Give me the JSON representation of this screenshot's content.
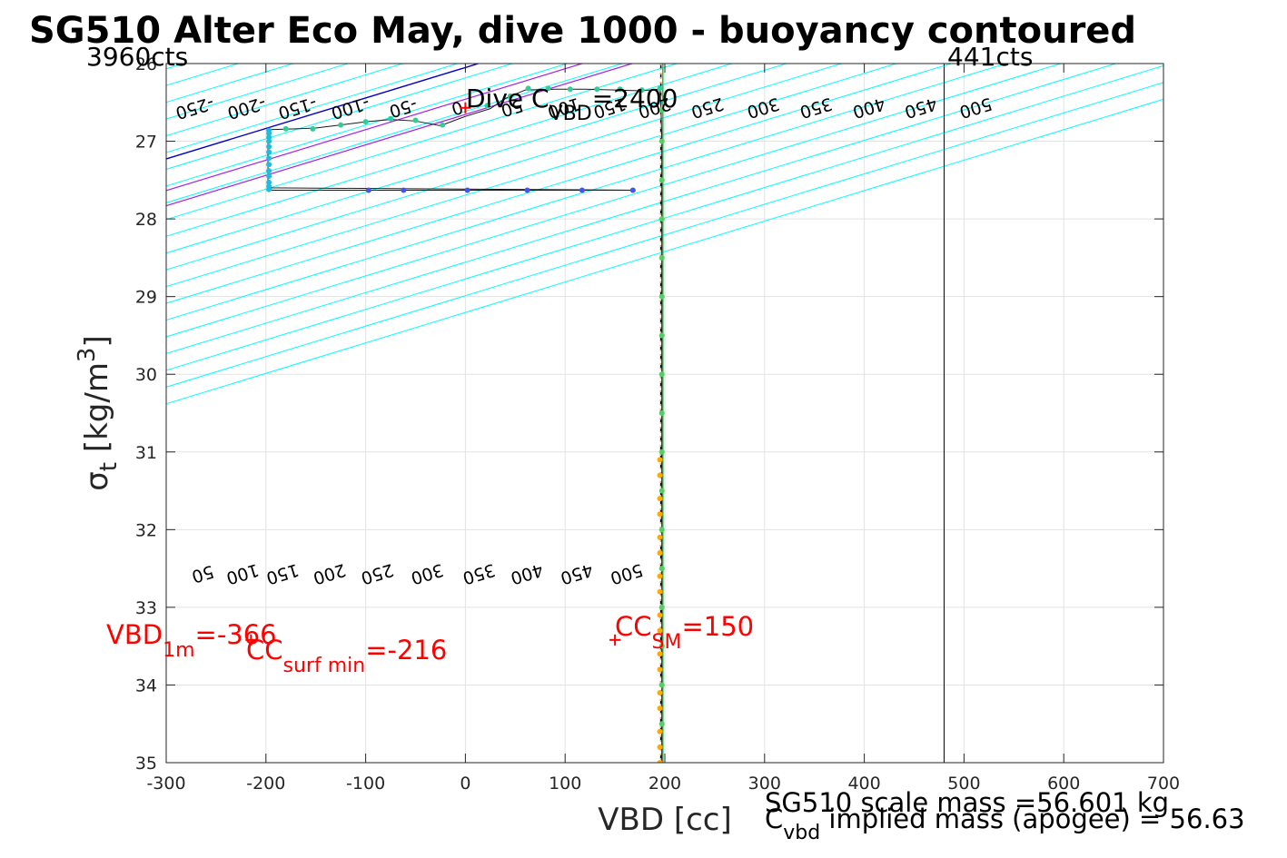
{
  "chart_data": {
    "type": "scatter",
    "title": "SG510 Alter Eco May, dive 1000 - buoyancy contoured",
    "xlabel": "VBD [cc]",
    "ylabel": {
      "symbol": "σ",
      "subscript": "t",
      "text": "[kg/m",
      "superscript": "3",
      "close": "]"
    },
    "xlim": [
      -300,
      700
    ],
    "ylim": [
      26,
      35
    ],
    "y_reversed": true,
    "grid": true,
    "xticks": [
      -300,
      -200,
      -100,
      0,
      100,
      200,
      300,
      400,
      500,
      600,
      700
    ],
    "yticks": [
      26,
      27,
      28,
      29,
      30,
      31,
      32,
      33,
      34,
      35
    ],
    "xtick_labels": [
      "-300",
      "-200",
      "-100",
      "0",
      "100",
      "200",
      "300",
      "400",
      "500",
      "600",
      "700"
    ],
    "ytick_labels": [
      "26",
      "27",
      "28",
      "29",
      "30",
      "31",
      "32",
      "33",
      "34",
      "35"
    ],
    "counts_labels": [
      {
        "text": "3960cts",
        "x": -300,
        "y": 26
      },
      {
        "text": "441cts",
        "x": 480,
        "y": 26
      }
    ],
    "count_limit_line_x": 480,
    "contours": {
      "slope_cc_per_sigma": 255,
      "upper_levels": [
        -250,
        -200,
        -150,
        -100,
        -50,
        0,
        50,
        100,
        150,
        200,
        250,
        300,
        350,
        400,
        450,
        500
      ],
      "upper_labels": [
        "-250",
        "-200",
        "-150",
        "-100",
        "-50",
        "0",
        "50",
        "100",
        "150",
        "200",
        "250",
        "300",
        "350",
        "400",
        "450",
        "500"
      ],
      "lower_levels": [
        50,
        100,
        150,
        200,
        250,
        300,
        350,
        400,
        450,
        500
      ],
      "lower_labels": [
        "50",
        "100",
        "150",
        "200",
        "250",
        "300",
        "350",
        "400",
        "450",
        "500"
      ],
      "color": "#00ffff",
      "zero_line": {
        "x_at_26": 13,
        "color": "#0000cc"
      },
      "surface_lines": [
        {
          "x_at_26": 117,
          "color": "#a020f0"
        },
        {
          "x_at_26": 167,
          "color": "#a020f0"
        }
      ]
    },
    "vertical_lines": [
      {
        "x": 196,
        "color": "#000000",
        "style": "dashed"
      },
      {
        "x": 196,
        "color": "#ffaa00",
        "style": "dotted"
      },
      {
        "x": 198,
        "color": "#22bb55",
        "style": "solid"
      }
    ],
    "series": [
      {
        "color": "#1a1a1a",
        "points": [
          [
            -198,
            27.63
          ],
          [
            -155,
            27.63
          ],
          [
            -100,
            27.63
          ],
          [
            -40,
            27.63
          ],
          [
            0,
            27.63
          ],
          [
            60,
            27.63
          ],
          [
            118,
            27.63
          ],
          [
            170,
            27.63
          ],
          [
            -198,
            27.6
          ],
          [
            -198,
            27.4
          ],
          [
            -198,
            27.2
          ],
          [
            -198,
            27.0
          ],
          [
            -196,
            26.85
          ],
          [
            -170,
            26.84
          ],
          [
            -150,
            26.83
          ],
          [
            -125,
            26.79
          ],
          [
            -100,
            26.75
          ],
          [
            -75,
            26.72
          ],
          [
            -50,
            26.74
          ],
          [
            -25,
            26.8
          ],
          [
            0,
            26.68
          ],
          [
            25,
            26.58
          ],
          [
            40,
            26.45
          ],
          [
            60,
            26.34
          ],
          [
            90,
            26.33
          ],
          [
            120,
            26.33
          ],
          [
            150,
            26.34
          ],
          [
            175,
            26.35
          ],
          [
            195,
            26.33
          ],
          [
            196,
            26.5
          ],
          [
            197,
            27.0
          ],
          [
            197,
            28
          ],
          [
            197,
            30
          ],
          [
            197,
            33
          ],
          [
            197,
            35
          ]
        ]
      },
      {
        "color": "#4455ee",
        "points": [
          [
            -97,
            27.63
          ],
          [
            -62,
            27.63
          ],
          [
            2,
            27.63
          ],
          [
            62,
            27.63
          ],
          [
            117,
            27.63
          ],
          [
            168,
            27.63
          ]
        ]
      },
      {
        "color": "#22bbdd",
        "points": [
          [
            -197,
            27.62
          ],
          [
            -197,
            27.58
          ],
          [
            -197,
            27.53
          ],
          [
            -197,
            27.45
          ],
          [
            -197,
            27.38
          ],
          [
            -197,
            27.3
          ],
          [
            -197,
            27.22
          ],
          [
            -197,
            27.14
          ],
          [
            -197,
            27.07
          ],
          [
            -197,
            27.0
          ],
          [
            -197,
            26.95
          ],
          [
            -197,
            26.9
          ],
          [
            -197,
            26.86
          ]
        ]
      },
      {
        "color": "#33cc99",
        "points": [
          [
            -180,
            26.84
          ],
          [
            -153,
            26.84
          ],
          [
            -125,
            26.79
          ],
          [
            -100,
            26.75
          ],
          [
            -75,
            26.71
          ],
          [
            -50,
            26.73
          ],
          [
            -23,
            26.79
          ],
          [
            22,
            26.54
          ],
          [
            45,
            26.42
          ],
          [
            63,
            26.32
          ],
          [
            83,
            26.32
          ],
          [
            105,
            26.33
          ],
          [
            132,
            26.33
          ],
          [
            155,
            26.33
          ],
          [
            177,
            26.34
          ],
          [
            195,
            26.32
          ]
        ]
      },
      {
        "color": "#55cc66",
        "points": [
          [
            197,
            26.6
          ],
          [
            197,
            27.0
          ],
          [
            197,
            27.5
          ],
          [
            197,
            28.0
          ],
          [
            197,
            28.5
          ],
          [
            197,
            29.0
          ],
          [
            197,
            29.5
          ],
          [
            197,
            30.0
          ],
          [
            197,
            30.5
          ],
          [
            197,
            31.0
          ],
          [
            197,
            31.5
          ],
          [
            197,
            32.0
          ],
          [
            197,
            32.5
          ],
          [
            197,
            33.0
          ],
          [
            197,
            33.5
          ],
          [
            197,
            34.0
          ],
          [
            197,
            34.5
          ]
        ]
      },
      {
        "color": "#ffaa00",
        "points": [
          [
            195,
            31.1
          ],
          [
            195,
            31.3
          ],
          [
            195,
            31.6
          ],
          [
            195,
            31.8
          ],
          [
            195,
            32.1
          ],
          [
            195,
            32.3
          ],
          [
            195,
            32.6
          ],
          [
            195,
            32.8
          ],
          [
            195,
            33.1
          ],
          [
            195,
            33.3
          ],
          [
            195,
            33.6
          ],
          [
            195,
            33.8
          ],
          [
            195,
            34.1
          ],
          [
            195,
            34.3
          ],
          [
            195,
            34.6
          ],
          [
            195,
            34.8
          ],
          [
            195,
            35.0
          ]
        ]
      }
    ],
    "markers": [
      {
        "label": "Dive C_VBD",
        "x": 0,
        "y": 26.57,
        "color": "#ff0000"
      },
      {
        "label": "CC_SM",
        "x": 150,
        "y": 33.42,
        "color": "#ff0000"
      },
      {
        "label": "VBD_1m",
        "x": -215,
        "y": 33.42,
        "color": "#ff0000"
      }
    ],
    "annotations": {
      "dive_cvbd": {
        "text": "Dive C",
        "sub": "VBD",
        "value": "=2400"
      },
      "vbd_1m": {
        "text": "VBD",
        "sub": "1m",
        "value": "=-366"
      },
      "cc_surf_min": {
        "text": "CC",
        "sub": "surf min",
        "value": "=-216"
      },
      "cc_sm": {
        "text": "CC",
        "sub": "SM",
        "value": "=150"
      }
    }
  },
  "footer": {
    "scale_mass": "SG510 scale mass =56.601 kg",
    "implied_c": "C",
    "implied_sub": "vbd",
    "implied_rest": " implied mass (apogee) = 56.63"
  }
}
